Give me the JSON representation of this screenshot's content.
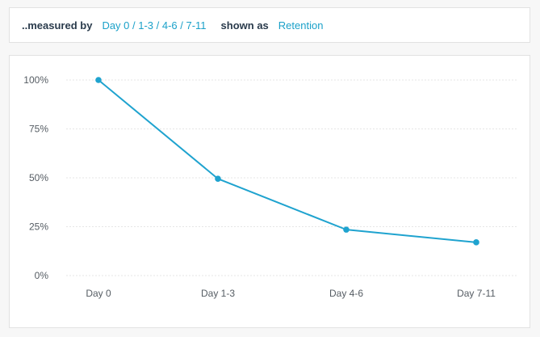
{
  "controls": {
    "measured_by_label": "..measured by",
    "measured_by_value": "Day 0 / 1-3 / 4-6 / 7-11",
    "shown_as_label": "shown as",
    "shown_as_value": "Retention"
  },
  "colors": {
    "accent": "#1ba1c9",
    "line": "#1fa3cf",
    "label_dark": "#2a3b4c",
    "grid": "#e6e6e6"
  },
  "chart_data": {
    "type": "line",
    "title": "",
    "xlabel": "",
    "ylabel": "",
    "categories": [
      "Day 0",
      "Day 1-3",
      "Day 4-6",
      "Day 7-11"
    ],
    "y_ticks": [
      "100%",
      "75%",
      "50%",
      "25%",
      "0%"
    ],
    "ylim": [
      0,
      100
    ],
    "grid": true,
    "series": [
      {
        "values": [
          100,
          49.5,
          23.5,
          17
        ]
      }
    ]
  }
}
